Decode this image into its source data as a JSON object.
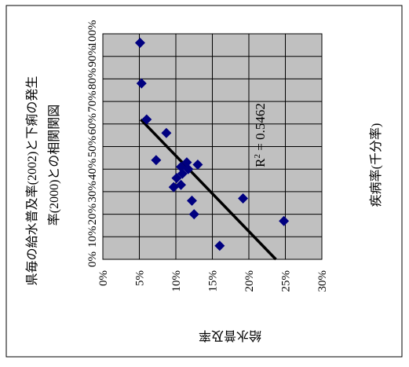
{
  "chart_data": {
    "type": "scatter",
    "title": "県毎の給水普及率(2002)と下痢の発生率(2000)との相関関係図",
    "title_lines": [
      "県毎の給水普及率(2002)と下痢の発生",
      "率(2000)との相関関図"
    ],
    "xlabel": "給水普及率",
    "ylabel": "疾病率(千分率)",
    "x_ticks": [
      "0%",
      "10%",
      "20%",
      "30%",
      "40%",
      "50%",
      "60%",
      "70%",
      "80%",
      "90%",
      "100%"
    ],
    "y_ticks": [
      "0%",
      "5%",
      "10%",
      "15%",
      "20%",
      "25%",
      "30%"
    ],
    "xlim": [
      0,
      1.0
    ],
    "ylim": [
      0,
      0.3
    ],
    "grid": true,
    "rotation": "90-degree-counterclockwise",
    "points": [
      {
        "x": 0.96,
        "y": 0.051
      },
      {
        "x": 0.78,
        "y": 0.053
      },
      {
        "x": 0.62,
        "y": 0.06
      },
      {
        "x": 0.56,
        "y": 0.087
      },
      {
        "x": 0.44,
        "y": 0.073
      },
      {
        "x": 0.43,
        "y": 0.115
      },
      {
        "x": 0.42,
        "y": 0.13
      },
      {
        "x": 0.41,
        "y": 0.107
      },
      {
        "x": 0.4,
        "y": 0.117
      },
      {
        "x": 0.38,
        "y": 0.109
      },
      {
        "x": 0.36,
        "y": 0.101
      },
      {
        "x": 0.33,
        "y": 0.107
      },
      {
        "x": 0.32,
        "y": 0.097
      },
      {
        "x": 0.27,
        "y": 0.192
      },
      {
        "x": 0.26,
        "y": 0.122
      },
      {
        "x": 0.2,
        "y": 0.125
      },
      {
        "x": 0.17,
        "y": 0.248
      },
      {
        "x": 0.06,
        "y": 0.16
      }
    ],
    "trendline": {
      "type": "linear",
      "start": {
        "x": 0.62,
        "y": 0.052
      },
      "end": {
        "x": 0.0,
        "y": 0.237
      },
      "label": "R² = 0.5462",
      "label_base": "R",
      "label_sup": "2",
      "label_rest": " = 0.5462"
    },
    "marker_color": "#000080",
    "trendline_color": "#000000",
    "plot_background": "#c0c0c0",
    "grid_color": "#000000",
    "border_color": "#000000"
  }
}
